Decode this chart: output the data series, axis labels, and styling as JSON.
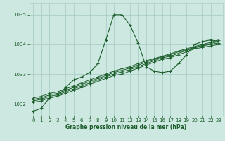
{
  "bg_color": "#cde8e0",
  "grid_color": "#aacfc7",
  "line_color": "#1a5c2a",
  "title": "Graphe pression niveau de la mer (hPa)",
  "xlim": [
    -0.5,
    23.5
  ],
  "ylim": [
    1031.6,
    1035.4
  ],
  "yticks": [
    1032,
    1033,
    1034,
    1035
  ],
  "xticks": [
    0,
    1,
    2,
    3,
    4,
    5,
    6,
    7,
    8,
    9,
    10,
    11,
    12,
    13,
    14,
    15,
    16,
    17,
    18,
    19,
    20,
    21,
    22,
    23
  ],
  "series": {
    "main": [
      1031.75,
      1031.85,
      1032.2,
      1032.25,
      1032.55,
      1032.8,
      1032.9,
      1033.05,
      1033.35,
      1034.15,
      1035.0,
      1035.0,
      1034.65,
      1034.05,
      1033.25,
      1033.1,
      1033.05,
      1033.1,
      1033.35,
      1033.65,
      1034.0,
      1034.1,
      1034.15,
      1034.1
    ],
    "linear1": [
      1032.05,
      1032.1,
      1032.2,
      1032.25,
      1032.35,
      1032.45,
      1032.55,
      1032.65,
      1032.75,
      1032.85,
      1032.95,
      1033.0,
      1033.1,
      1033.2,
      1033.3,
      1033.4,
      1033.5,
      1033.55,
      1033.65,
      1033.75,
      1033.85,
      1033.9,
      1033.95,
      1034.0
    ],
    "linear2": [
      1032.1,
      1032.15,
      1032.25,
      1032.3,
      1032.4,
      1032.5,
      1032.6,
      1032.7,
      1032.8,
      1032.9,
      1033.0,
      1033.08,
      1033.15,
      1033.25,
      1033.35,
      1033.45,
      1033.55,
      1033.6,
      1033.7,
      1033.8,
      1033.88,
      1033.95,
      1034.0,
      1034.05
    ],
    "linear3": [
      1032.15,
      1032.2,
      1032.3,
      1032.35,
      1032.45,
      1032.55,
      1032.65,
      1032.75,
      1032.85,
      1032.95,
      1033.05,
      1033.13,
      1033.2,
      1033.3,
      1033.4,
      1033.5,
      1033.58,
      1033.65,
      1033.75,
      1033.82,
      1033.9,
      1033.97,
      1034.03,
      1034.1
    ],
    "linear4": [
      1032.2,
      1032.25,
      1032.35,
      1032.4,
      1032.5,
      1032.6,
      1032.7,
      1032.8,
      1032.9,
      1033.0,
      1033.1,
      1033.18,
      1033.25,
      1033.35,
      1033.45,
      1033.52,
      1033.6,
      1033.68,
      1033.78,
      1033.85,
      1033.93,
      1034.0,
      1034.07,
      1034.15
    ]
  }
}
